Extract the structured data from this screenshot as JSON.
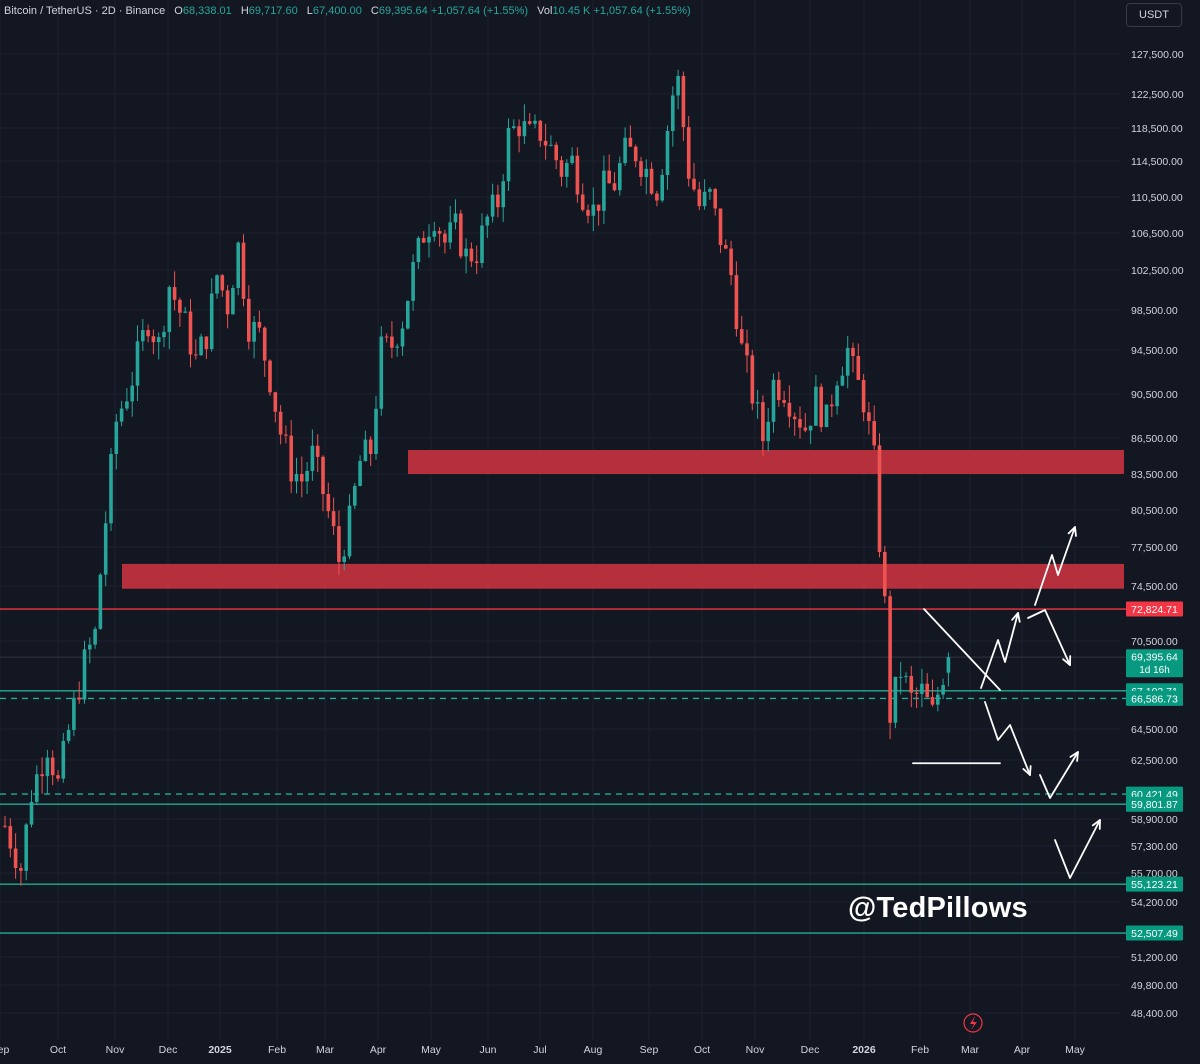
{
  "header": {
    "symbol": "Bitcoin / TetherUS · 2D · Binance",
    "open_label": "O",
    "open": "68,338.01",
    "high_label": "H",
    "high": "69,717.60",
    "low_label": "L",
    "low": "67,400.00",
    "close_label": "C",
    "close": "69,395.64",
    "change": "+1,057.64 (+1.55%)",
    "vol_label": "Vol",
    "vol": "10.45 K",
    "vol_change": "+1,057.64 (+1.55%)"
  },
  "currency_button": "USDT",
  "watermark": "@TedPillows",
  "colors": {
    "background": "#131722",
    "up": "#26a69a",
    "down": "#ef5350",
    "zone": "#c8323f",
    "resistance_line": "#f23645",
    "support_line": "#22ab94",
    "drawing": "#ffffff"
  },
  "chart_data": {
    "type": "candlestick",
    "symbol": "BTCUSDT",
    "interval": "2D",
    "y_axis_ticks": [
      {
        "value": 127500,
        "label": "127,500.00"
      },
      {
        "value": 122500,
        "label": "122,500.00"
      },
      {
        "value": 118500,
        "label": "118,500.00"
      },
      {
        "value": 114500,
        "label": "114,500.00"
      },
      {
        "value": 110500,
        "label": "110,500.00"
      },
      {
        "value": 106500,
        "label": "106,500.00"
      },
      {
        "value": 102500,
        "label": "102,500.00"
      },
      {
        "value": 98500,
        "label": "98,500.00"
      },
      {
        "value": 94500,
        "label": "94,500.00"
      },
      {
        "value": 90500,
        "label": "90,500.00"
      },
      {
        "value": 86500,
        "label": "86,500.00"
      },
      {
        "value": 83500,
        "label": "83,500.00"
      },
      {
        "value": 80500,
        "label": "80,500.00"
      },
      {
        "value": 77500,
        "label": "77,500.00"
      },
      {
        "value": 74500,
        "label": "74,500.00"
      },
      {
        "value": 70500,
        "label": "70,500.00"
      },
      {
        "value": 64500,
        "label": "64,500.00"
      },
      {
        "value": 62500,
        "label": "62,500.00"
      },
      {
        "value": 58900,
        "label": "58,900.00"
      },
      {
        "value": 57300,
        "label": "57,300.00"
      },
      {
        "value": 55700,
        "label": "55,700.00"
      },
      {
        "value": 54200,
        "label": "54,200.00"
      },
      {
        "value": 51200,
        "label": "51,200.00"
      },
      {
        "value": 49800,
        "label": "49,800.00"
      },
      {
        "value": 48400,
        "label": "48,400.00"
      }
    ],
    "x_axis_ticks": [
      "Sep",
      "Oct",
      "Nov",
      "Dec",
      "2025",
      "Feb",
      "Mar",
      "Apr",
      "May",
      "Jun",
      "Jul",
      "Aug",
      "Sep",
      "Oct",
      "Nov",
      "Dec",
      "2026",
      "Feb",
      "Mar",
      "Apr",
      "May"
    ],
    "price_trail": [
      [
        0,
        58500
      ],
      [
        3,
        56000
      ],
      [
        5,
        60500
      ],
      [
        8,
        63500
      ],
      [
        10,
        61000
      ],
      [
        13,
        66000
      ],
      [
        15,
        69000
      ],
      [
        17,
        71000
      ],
      [
        18,
        75500
      ],
      [
        21,
        88000
      ],
      [
        24,
        92000
      ],
      [
        27,
        97500
      ],
      [
        29,
        95000
      ],
      [
        31,
        101000
      ],
      [
        34,
        97000
      ],
      [
        36,
        93500
      ],
      [
        38,
        96000
      ],
      [
        40,
        102000
      ],
      [
        42,
        99000
      ],
      [
        44,
        105000
      ],
      [
        46,
        97000
      ],
      [
        48,
        96000
      ],
      [
        50,
        92000
      ],
      [
        52,
        87000
      ],
      [
        54,
        84000
      ],
      [
        56,
        83000
      ],
      [
        58,
        85000
      ],
      [
        60,
        82000
      ],
      [
        62,
        78500
      ],
      [
        63,
        76500
      ],
      [
        65,
        79500
      ],
      [
        67,
        84500
      ],
      [
        69,
        85500
      ],
      [
        71,
        94500
      ],
      [
        73,
        95000
      ],
      [
        75,
        97500
      ],
      [
        77,
        102500
      ],
      [
        79,
        106500
      ],
      [
        81,
        108500
      ],
      [
        83,
        105500
      ],
      [
        85,
        107000
      ],
      [
        87,
        104000
      ],
      [
        89,
        104500
      ],
      [
        91,
        108000
      ],
      [
        93,
        110000
      ],
      [
        95,
        117500
      ],
      [
        97,
        119000
      ],
      [
        99,
        117500
      ],
      [
        101,
        118000
      ],
      [
        103,
        116000
      ],
      [
        105,
        113500
      ],
      [
        107,
        114500
      ],
      [
        109,
        111000
      ],
      [
        111,
        109000
      ],
      [
        113,
        111500
      ],
      [
        115,
        112000
      ],
      [
        117,
        115500
      ],
      [
        119,
        115500
      ],
      [
        121,
        113500
      ],
      [
        123,
        111500
      ],
      [
        124,
        114500
      ],
      [
        126,
        122500
      ],
      [
        127,
        124000
      ],
      [
        129,
        113500
      ],
      [
        131,
        109500
      ],
      [
        133,
        110500
      ],
      [
        135,
        106000
      ],
      [
        137,
        102000
      ],
      [
        139,
        94500
      ],
      [
        141,
        90500
      ],
      [
        143,
        86500
      ],
      [
        145,
        91500
      ],
      [
        147,
        91000
      ],
      [
        149,
        89000
      ],
      [
        151,
        87500
      ],
      [
        153,
        90000
      ],
      [
        155,
        88000
      ],
      [
        157,
        92500
      ],
      [
        159,
        94500
      ],
      [
        160,
        92500
      ],
      [
        162,
        90000
      ],
      [
        164,
        84500
      ],
      [
        165,
        78000
      ],
      [
        166,
        73000
      ],
      [
        167,
        65500
      ],
      [
        169,
        68500
      ],
      [
        171,
        66500
      ],
      [
        173,
        67000
      ],
      [
        175,
        65500
      ],
      [
        177,
        68338.01
      ],
      [
        178,
        69395.64
      ]
    ],
    "last_candle": {
      "open": 68338.01,
      "high": 69717.6,
      "low": 67400.0,
      "close": 69395.64
    },
    "resistance_zones": [
      {
        "from": 83500,
        "to": 85500
      },
      {
        "from": 74300,
        "to": 76200
      }
    ],
    "horizontal_levels": [
      {
        "value": 72824.71,
        "label": "72,824.71",
        "kind": "resistance"
      },
      {
        "value": 69395.64,
        "label": "69,395.64",
        "sublabel": "1d 16h",
        "kind": "last-price"
      },
      {
        "value": 67103.71,
        "label": "67,103.71",
        "kind": "support"
      },
      {
        "value": 66586.73,
        "label": "66,586.73",
        "kind": "support-dashed"
      },
      {
        "value": 60421.49,
        "label": "60,421.49",
        "kind": "support-dashed"
      },
      {
        "value": 59801.87,
        "label": "59,801.87",
        "kind": "support"
      },
      {
        "value": 55123.21,
        "label": "55,123.21",
        "kind": "support"
      },
      {
        "value": 52507.49,
        "label": "52,507.49",
        "kind": "support"
      }
    ],
    "annotations": [
      "descending-trendline",
      "range-floor-line",
      "projected-path-arrows"
    ]
  }
}
